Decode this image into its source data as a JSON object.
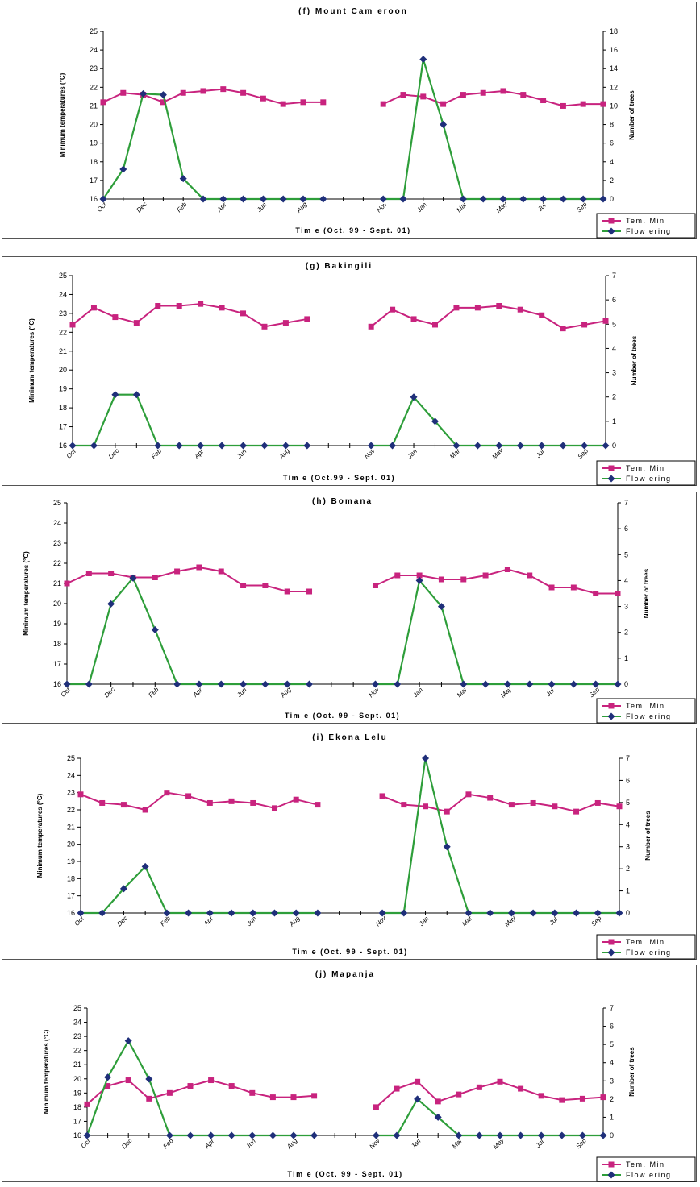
{
  "colors": {
    "temp": "#c8237e",
    "flower_line": "#2e9e3a",
    "flower_marker": "#1f2f7a"
  },
  "legend": {
    "temp": "Tem. Min",
    "flower": "Flow ering"
  },
  "chart_data": [
    {
      "type": "line",
      "title": "(f) Mount Cam eroon",
      "xlabel": "Tim e (Oct. 99 - Sept. 01)",
      "ylabel": "Minimum temperatures (°C)",
      "y2label": "Number of trees",
      "months": [
        "Oct",
        "Dec",
        "Feb",
        "Apr",
        "Jun",
        "Aug",
        "Nov",
        "Jan",
        "Mar",
        "May",
        "Jul",
        "Sep"
      ],
      "ylim": [
        16,
        25
      ],
      "y2lim": [
        0,
        18
      ],
      "y2step": 2,
      "series": [
        {
          "name": "Tem. Min",
          "axis": "left",
          "values": [
            21.2,
            21.7,
            21.6,
            21.2,
            21.7,
            21.8,
            21.9,
            21.7,
            21.4,
            21.1,
            21.2,
            21.2,
            null,
            null,
            21.1,
            21.6,
            21.5,
            21.1,
            21.6,
            21.7,
            21.8,
            21.6,
            21.3,
            21.0,
            21.1,
            21.1
          ]
        },
        {
          "name": "Flow ering",
          "axis": "right",
          "values": [
            0,
            3.2,
            11.3,
            11.2,
            2.2,
            0,
            0,
            0,
            0,
            0,
            0,
            0,
            null,
            null,
            0,
            0,
            15,
            8,
            0,
            0,
            0,
            0,
            0,
            0,
            0,
            0
          ]
        }
      ]
    },
    {
      "type": "line",
      "title": "(g) Bakingili",
      "xlabel": "Tim e (Oct.99 - Sept. 01)",
      "ylabel": "Minimum temperatures (°C)",
      "y2label": "Number of trees",
      "months": [
        "Oct",
        "Dec",
        "Feb",
        "Apr",
        "Jun",
        "Aug",
        "Nov",
        "Jan",
        "Mar",
        "May",
        "Jul",
        "Sep"
      ],
      "ylim": [
        16,
        25
      ],
      "y2lim": [
        0,
        7
      ],
      "y2step": 1,
      "series": [
        {
          "name": "Tem. Min",
          "axis": "left",
          "values": [
            22.4,
            23.3,
            22.8,
            22.5,
            23.4,
            23.4,
            23.5,
            23.3,
            23.0,
            22.3,
            22.5,
            22.7,
            null,
            null,
            22.3,
            23.2,
            22.7,
            22.4,
            23.3,
            23.3,
            23.4,
            23.2,
            22.9,
            22.2,
            22.4,
            22.6
          ]
        },
        {
          "name": "Flow ering",
          "axis": "right",
          "values": [
            0,
            0,
            2.1,
            2.1,
            0,
            0,
            0,
            0,
            0,
            0,
            0,
            0,
            null,
            null,
            0,
            0,
            2,
            1,
            0,
            0,
            0,
            0,
            0,
            0,
            0,
            0
          ]
        }
      ]
    },
    {
      "type": "line",
      "title": "(h) Bomana",
      "xlabel": "Tim e (Oct. 99 - Sept. 01)",
      "ylabel": "Minimum temperatures (°C)",
      "y2label": "Number of trees",
      "months": [
        "Oct",
        "Dec",
        "Feb",
        "Apr",
        "Jun",
        "Aug",
        "Nov",
        "Jan",
        "Mar",
        "May",
        "Jul",
        "Sep"
      ],
      "ylim": [
        16,
        25
      ],
      "y2lim": [
        0,
        7
      ],
      "y2step": 1,
      "series": [
        {
          "name": "Tem. Min",
          "axis": "left",
          "values": [
            21.0,
            21.5,
            21.5,
            21.3,
            21.3,
            21.6,
            21.8,
            21.6,
            20.9,
            20.9,
            20.6,
            20.6,
            null,
            null,
            20.9,
            21.4,
            21.4,
            21.2,
            21.2,
            21.4,
            21.7,
            21.4,
            20.8,
            20.8,
            20.5,
            20.5
          ]
        },
        {
          "name": "Flow ering",
          "axis": "right",
          "values": [
            0,
            0,
            3.1,
            4.1,
            2.1,
            0,
            0,
            0,
            0,
            0,
            0,
            0,
            null,
            null,
            0,
            0,
            4,
            3,
            0,
            0,
            0,
            0,
            0,
            0,
            0,
            0
          ]
        }
      ]
    },
    {
      "type": "line",
      "title": "(i) Ekona Lelu",
      "xlabel": "Tim e (Oct. 99 - Sept. 01)",
      "ylabel": "Minimum temperatures (°C)",
      "y2label": "Number of trees",
      "months": [
        "Oct",
        "Dec",
        "Feb",
        "Apr",
        "Jun",
        "Aug",
        "Nov",
        "Jan",
        "Mar",
        "May",
        "Jul",
        "Sep"
      ],
      "ylim": [
        16,
        25
      ],
      "y2lim": [
        0,
        7
      ],
      "y2step": 1,
      "series": [
        {
          "name": "Tem. Min",
          "axis": "left",
          "values": [
            22.9,
            22.4,
            22.3,
            22.0,
            23.0,
            22.8,
            22.4,
            22.5,
            22.4,
            22.1,
            22.6,
            22.3,
            null,
            null,
            22.8,
            22.3,
            22.2,
            21.9,
            22.9,
            22.7,
            22.3,
            22.4,
            22.2,
            21.9,
            22.4,
            22.2
          ]
        },
        {
          "name": "Flow ering",
          "axis": "right",
          "values": [
            0,
            0,
            1.1,
            2.1,
            0,
            0,
            0,
            0,
            0,
            0,
            0,
            0,
            null,
            null,
            0,
            0,
            7,
            3,
            0,
            0,
            0,
            0,
            0,
            0,
            0,
            0
          ]
        }
      ]
    },
    {
      "type": "line",
      "title": "(j) Mapanja",
      "xlabel": "Tim e (Oct. 99 - Sept. 01)",
      "ylabel": "Minimum temperatures (°C)",
      "y2label": "Number of trees",
      "months": [
        "Oct",
        "Dec",
        "Feb",
        "Apr",
        "Jun",
        "Aug",
        "Nov",
        "Jan",
        "Mar",
        "May",
        "Jul",
        "Sep"
      ],
      "ylim": [
        16,
        25
      ],
      "y2lim": [
        0,
        7
      ],
      "y2step": 1,
      "series": [
        {
          "name": "Tem. Min",
          "axis": "left",
          "values": [
            18.2,
            19.5,
            19.9,
            18.6,
            19.0,
            19.5,
            19.9,
            19.5,
            19.0,
            18.7,
            18.7,
            18.8,
            null,
            null,
            18.0,
            19.3,
            19.8,
            18.4,
            18.9,
            19.4,
            19.8,
            19.3,
            18.8,
            18.5,
            18.6,
            18.7
          ]
        },
        {
          "name": "Flow ering",
          "axis": "right",
          "values": [
            0,
            3.2,
            5.2,
            3.1,
            0,
            0,
            0,
            0,
            0,
            0,
            0,
            0,
            null,
            null,
            0,
            0,
            2,
            1,
            0,
            0,
            0,
            0,
            0,
            0,
            0,
            0
          ]
        }
      ]
    }
  ]
}
